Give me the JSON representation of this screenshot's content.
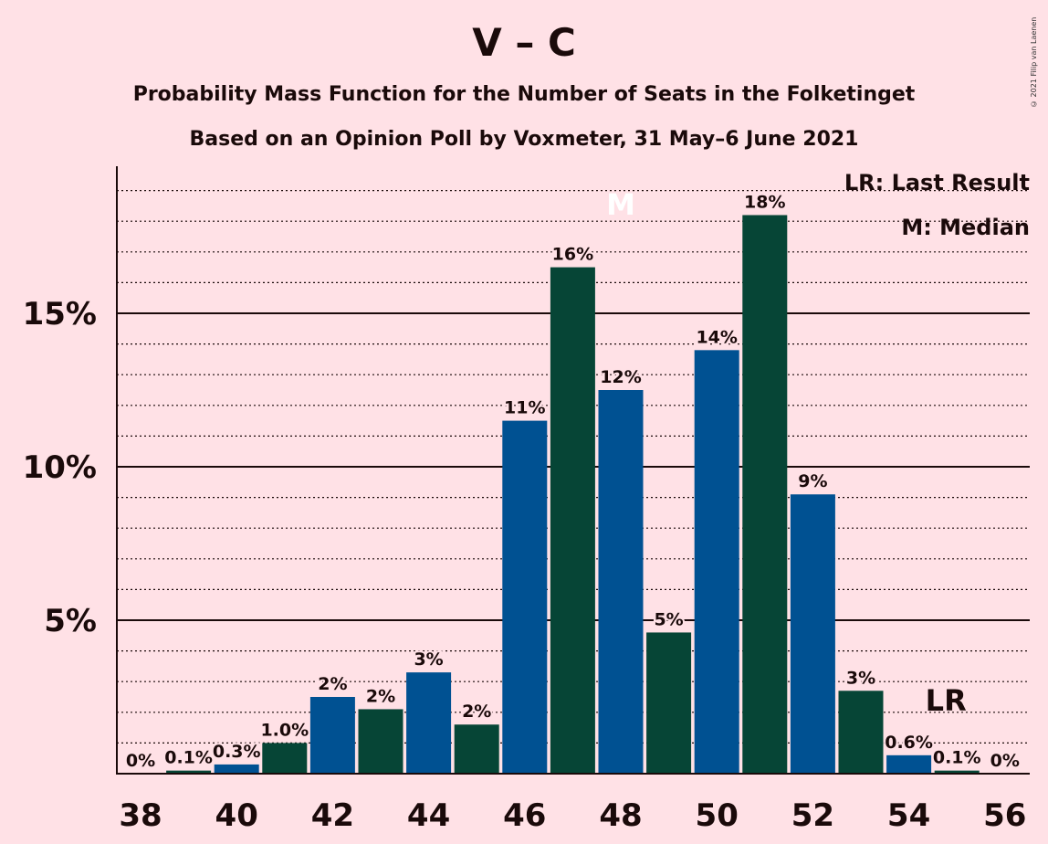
{
  "chart_data": {
    "type": "bar",
    "title": "V – C",
    "subtitle": "Probability Mass Function for the Number of Seats in the Folketinget",
    "subtitle2": "Based on an Opinion Poll by Voxmeter, 31 May–6 June 2021",
    "copyright": "© 2021 Filip van Laenen",
    "x": [
      38,
      39,
      40,
      41,
      42,
      43,
      44,
      45,
      46,
      47,
      48,
      49,
      50,
      51,
      52,
      53,
      54,
      55,
      56
    ],
    "values": [
      0,
      0.1,
      0.3,
      1.0,
      2.5,
      2.1,
      3.3,
      1.6,
      11.5,
      16.5,
      12.5,
      4.6,
      13.8,
      18.2,
      9.1,
      2.7,
      0.6,
      0.1,
      0
    ],
    "value_labels": [
      "0%",
      "0.1%",
      "0.3%",
      "1.0%",
      "2%",
      "2%",
      "3%",
      "2%",
      "11%",
      "16%",
      "12%",
      "5%",
      "14%",
      "18%",
      "9%",
      "3%",
      "0.6%",
      "0.1%",
      "0%"
    ],
    "x_tick_labels": [
      "38",
      "40",
      "42",
      "44",
      "46",
      "48",
      "50",
      "52",
      "54",
      "56"
    ],
    "y_ticks": [
      5,
      10,
      15
    ],
    "y_tick_labels": [
      "5%",
      "10%",
      "15%"
    ],
    "ylim": [
      0,
      20
    ],
    "grid": true,
    "colors": {
      "blue": "#005192",
      "green": "#064536",
      "background": "#ffe1e6"
    },
    "median": 48,
    "median_marker": "M",
    "last_result": 55,
    "last_result_marker": "LR",
    "legend": {
      "last_result": "LR: Last Result",
      "median": "M: Median",
      "position": "top-right"
    }
  }
}
